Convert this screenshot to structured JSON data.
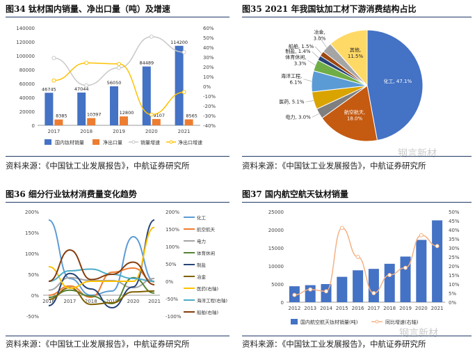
{
  "panels": {
    "p34": {
      "title": "图34 钛材国内销量、净出口量（吨）及增速",
      "source": "资料来源：《中国钛工业发展报告》，中航证券研究所"
    },
    "p35": {
      "title": "图35 2021 年我国钛加工材下游消费结构占比",
      "source": "资料来源：《中国钛工业发展报告》，中航证券研究所"
    },
    "p36": {
      "title": "图36 细分行业钛材消费量变化趋势",
      "source": "资料来源：《中国钛工业发展报告》，中航证券研究所"
    },
    "p37": {
      "title": "图37 国内航空航天钛材销量",
      "source": "资料来源：《中国钛工业发展报告》，中航证券研究所"
    }
  },
  "watermark": "钢言新材",
  "chart_data": [
    {
      "type": "bar",
      "categories": [
        "2017",
        "2018",
        "2019",
        "2020",
        "2021"
      ],
      "series": [
        {
          "name": "国内钛材销量",
          "axis": "left",
          "values": [
            46745,
            47044,
            56050,
            84489,
            114200
          ],
          "color": "#4472c4"
        },
        {
          "name": "净出口量",
          "axis": "left",
          "values": [
            8385,
            10397,
            12800,
            9107,
            8565
          ],
          "color": "#ed7d31"
        },
        {
          "name": "销量增速",
          "axis": "right",
          "kind": "line",
          "values": [
            29,
            1,
            19,
            51,
            35
          ],
          "color": "#c8c8c8"
        },
        {
          "name": "净出口增速",
          "axis": "right",
          "kind": "line",
          "values": [
            6,
            24,
            23,
            -29,
            -6
          ],
          "color": "#ffc000"
        }
      ],
      "ylim": [
        0,
        140000
      ],
      "yticks": [
        "0",
        "20000",
        "40000",
        "60000",
        "80000",
        "100000",
        "120000",
        "140000"
      ],
      "y2lim": [
        -40,
        60
      ],
      "y2ticks": [
        "-40%",
        "-30%",
        "-20%",
        "-10%",
        "0%",
        "10%",
        "20%",
        "30%",
        "40%",
        "50%",
        "60%"
      ],
      "data_labels": [
        "46745",
        "47044",
        "56050",
        "84489",
        "114200",
        "8385",
        "10397",
        "12800",
        "9107",
        "8565"
      ],
      "legend": "bottom"
    },
    {
      "type": "pie",
      "slices": [
        {
          "label": "化工",
          "value": 47.1,
          "text": "化工, 47.1%",
          "color": "#4472c4"
        },
        {
          "label": "航空航天",
          "value": 18.0,
          "text": "航空航天,\n18.0%",
          "color": "#c55a11"
        },
        {
          "label": "电力",
          "value": 3.0,
          "text": "电力, 3.0%",
          "color": "#7f7f7f"
        },
        {
          "label": "医药",
          "value": 5.1,
          "text": "医药, 5.1%",
          "color": "#d9a300"
        },
        {
          "label": "海洋工程",
          "value": 6.1,
          "text": "海洋工程,\n6.1%",
          "color": "#5b9bd5"
        },
        {
          "label": "体育休闲",
          "value": 3.3,
          "text": "体育休闲,\n3.3%",
          "color": "#70ad47"
        },
        {
          "label": "制盐",
          "value": 1.4,
          "text": "制盐, 1.4%",
          "color": "#264478"
        },
        {
          "label": "船舶",
          "value": 1.5,
          "text": "船舶, 1.5%",
          "color": "#9e480e"
        },
        {
          "label": "冶金",
          "value": 3.0,
          "text": "冶金,\n3.0%",
          "color": "#a5a5a5"
        },
        {
          "label": "其他",
          "value": 11.5,
          "text": "其他,\n11.5%",
          "color": "#ffd966"
        }
      ]
    },
    {
      "type": "line",
      "categories": [
        "2016",
        "2017",
        "2018",
        "2019",
        "2020",
        "2021"
      ],
      "series": [
        {
          "name": "化工",
          "axis": "left",
          "values": [
            180,
            40,
            0,
            10,
            140,
            32
          ],
          "color": "#5b9bd5"
        },
        {
          "name": "航空航天",
          "axis": "left",
          "values": [
            0,
            22,
            -5,
            55,
            65,
            32
          ],
          "color": "#ed7d31"
        },
        {
          "name": "电力",
          "axis": "left",
          "values": [
            12,
            42,
            35,
            35,
            18,
            40
          ],
          "color": "#a5a5a5"
        },
        {
          "name": "体育休闲",
          "axis": "left",
          "values": [
            -5,
            12,
            -2,
            -20,
            42,
            5
          ],
          "color": "#548235"
        },
        {
          "name": "制盐",
          "axis": "left",
          "values": [
            -25,
            52,
            15,
            -30,
            20,
            180
          ],
          "color": "#264478"
        },
        {
          "name": "冶金",
          "axis": "left",
          "values": [
            -10,
            18,
            -22,
            -18,
            8,
            10
          ],
          "color": "#7f6000"
        },
        {
          "name": "医药(右轴)",
          "axis": "right",
          "values": [
            42,
            -20,
            0,
            0,
            0,
            155
          ],
          "color": "#ffc000"
        },
        {
          "name": "海洋工程(右轴)",
          "axis": "right",
          "values": [
            0,
            30,
            35,
            20,
            8,
            0
          ],
          "color": "#4bacc6"
        },
        {
          "name": "船舶(右轴)",
          "axis": "right",
          "values": [
            0,
            90,
            5,
            20,
            55,
            -10
          ],
          "color": "#843c0c"
        }
      ],
      "ylim": [
        -50,
        200
      ],
      "yticks": [
        "-50%",
        "0%",
        "50%",
        "100%",
        "150%",
        "200%"
      ],
      "y2lim": [
        -100,
        200
      ],
      "y2ticks": [
        "-100%",
        "-50%",
        "0%",
        "50%",
        "100%",
        "150%",
        "200%"
      ],
      "legend": "right"
    },
    {
      "type": "bar",
      "categories": [
        "2012",
        "2013",
        "2014",
        "2015",
        "2016",
        "2017",
        "2018",
        "2019",
        "2020",
        "2021"
      ],
      "series": [
        {
          "name": "国内航空航天钛材销量(吨)",
          "axis": "left",
          "values": [
            4400,
            4700,
            5000,
            7000,
            8800,
            9200,
            10600,
            12600,
            17200,
            22600
          ],
          "color": "#4472c4"
        },
        {
          "name": "同比增速(右轴)",
          "axis": "right",
          "kind": "line",
          "values": [
            4,
            7,
            6,
            41,
            25,
            5,
            15,
            19,
            37,
            31
          ],
          "color": "#f4b183"
        }
      ],
      "ylim": [
        0,
        25000
      ],
      "yticks": [
        "0",
        "5000",
        "10000",
        "15000",
        "20000",
        "25000"
      ],
      "y2lim": [
        0,
        50
      ],
      "y2ticks": [
        "0%",
        "5%",
        "10%",
        "15%",
        "20%",
        "25%",
        "30%",
        "35%",
        "40%",
        "45%",
        "50%"
      ],
      "legend": "bottom"
    }
  ]
}
